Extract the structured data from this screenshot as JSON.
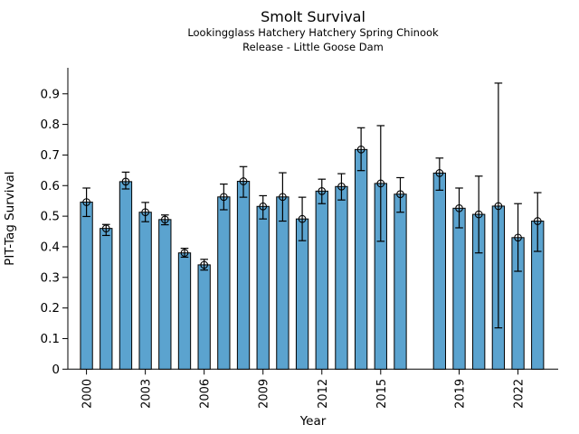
{
  "figure": {
    "title": "Smolt Survival",
    "subtitle_line1": "Lookingglass Hatchery Hatchery Spring Chinook",
    "subtitle_line2": "Release - Little Goose Dam"
  },
  "chart_data": {
    "type": "bar",
    "title": "Smolt Survival",
    "subtitle": [
      "Lookingglass Hatchery Hatchery Spring Chinook",
      "Release - Little Goose Dam"
    ],
    "xlabel": "Year",
    "ylabel": "PIT-Tag Survival",
    "grid": false,
    "legend": "none",
    "xlim": [
      1999.05,
      2024.05
    ],
    "ylim": [
      0,
      0.985
    ],
    "yticks": [
      0,
      0.1,
      0.2,
      0.3,
      0.4,
      0.5,
      0.6,
      0.7,
      0.8,
      0.9
    ],
    "ytick_labels": [
      "0",
      "0.1",
      "0.2",
      "0.3",
      "0.4",
      "0.5",
      "0.6",
      "0.7",
      "0.8",
      "0.9"
    ],
    "xticks": [
      2000,
      2003,
      2006,
      2009,
      2012,
      2015,
      2019,
      2022
    ],
    "xtick_labels": [
      "2000",
      "2003",
      "2006",
      "2009",
      "2012",
      "2015",
      "2019",
      "2022"
    ],
    "missing_years": [
      2017
    ],
    "bar_color": "#5ba3cf",
    "bar_edge_color": "#000000",
    "errorbar_color": "#000000",
    "marker": "open-circle",
    "series_name": "PIT-Tag Survival",
    "categories": [
      2000,
      2001,
      2002,
      2003,
      2004,
      2005,
      2006,
      2007,
      2008,
      2009,
      2010,
      2011,
      2012,
      2013,
      2014,
      2015,
      2016,
      2018,
      2019,
      2020,
      2021,
      2022,
      2023
    ],
    "values": [
      0.546,
      0.46,
      0.613,
      0.513,
      0.489,
      0.38,
      0.341,
      0.563,
      0.614,
      0.532,
      0.563,
      0.491,
      0.582,
      0.597,
      0.718,
      0.607,
      0.572,
      0.641,
      0.526,
      0.506,
      0.533,
      0.43,
      0.484
    ],
    "error_low": [
      0.499,
      0.437,
      0.589,
      0.482,
      0.472,
      0.366,
      0.324,
      0.521,
      0.562,
      0.491,
      0.484,
      0.42,
      0.541,
      0.553,
      0.649,
      0.418,
      0.513,
      0.585,
      0.462,
      0.38,
      0.135,
      0.32,
      0.385
    ],
    "error_high": [
      0.592,
      0.473,
      0.644,
      0.545,
      0.504,
      0.395,
      0.359,
      0.605,
      0.662,
      0.567,
      0.642,
      0.562,
      0.621,
      0.639,
      0.789,
      0.796,
      0.626,
      0.69,
      0.592,
      0.631,
      0.935,
      0.541,
      0.577
    ]
  }
}
